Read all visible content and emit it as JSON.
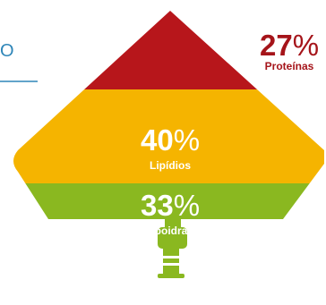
{
  "left_fragment": {
    "text": "O",
    "color": "#2f86b8"
  },
  "chart_data": {
    "type": "stacked-shape",
    "slices": [
      {
        "label": "Proteínas",
        "value": 27,
        "unit": "%",
        "color": "#b7161b"
      },
      {
        "label": "Lipídios",
        "value": 40,
        "unit": "%",
        "color": "#f5b400"
      },
      {
        "label": "Carboidratos",
        "value": 33,
        "unit": "%",
        "color": "#8ab820"
      }
    ],
    "title": ""
  },
  "colors": {
    "label_dark": "#a5141a",
    "label_light": "#ffffff",
    "stand": "#8ab820"
  }
}
